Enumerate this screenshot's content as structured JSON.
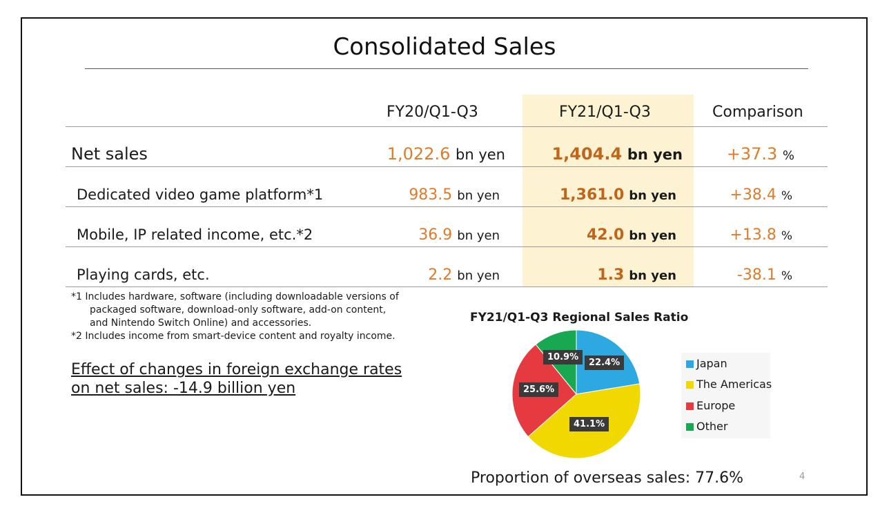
{
  "title": "Consolidated Sales",
  "table": {
    "headers": [
      "FY20/Q1-Q3",
      "FY21/Q1-Q3",
      "Comparison"
    ],
    "rows": [
      {
        "label": "Net sales",
        "fy20": "1,022.6",
        "fy20_unit": "bn yen",
        "fy21": "1,404.4",
        "fy21_unit": "bn yen",
        "cmp": "+37.3",
        "cmp_unit": "%"
      },
      {
        "label": "Dedicated video game platform*1",
        "fy20": "983.5",
        "fy20_unit": "bn yen",
        "fy21": "1,361.0",
        "fy21_unit": "bn yen",
        "cmp": "+38.4",
        "cmp_unit": "%"
      },
      {
        "label": "Mobile, IP related income, etc.*2",
        "fy20": "36.9",
        "fy20_unit": "bn yen",
        "fy21": "42.0",
        "fy21_unit": "bn yen",
        "cmp": "+13.8",
        "cmp_unit": "%"
      },
      {
        "label": "Playing cards, etc.",
        "fy20": "2.2",
        "fy20_unit": "bn yen",
        "fy21": "1.3",
        "fy21_unit": "bn yen",
        "cmp": "-38.1",
        "cmp_unit": "%"
      }
    ]
  },
  "notes": [
    "*1 Includes hardware, software (including downloadable versions of",
    "packaged software, download-only software, add-on content,",
    "and Nintendo Switch Online) and accessories.",
    "*2 Includes income from smart-device content and royalty income."
  ],
  "fx_effect": [
    "Effect of changes in foreign exchange rates",
    "on net sales: -14.9 billion yen"
  ],
  "chart_data": {
    "type": "pie",
    "title": "FY21/Q1-Q3 Regional Sales Ratio",
    "series": [
      {
        "name": "Japan",
        "value": 22.4,
        "label": "22.4%",
        "color": "#2ea8e0"
      },
      {
        "name": "The Americas",
        "value": 41.1,
        "label": "41.1%",
        "color": "#f0d800"
      },
      {
        "name": "Europe",
        "value": 25.6,
        "label": "25.6%",
        "color": "#e63a41"
      },
      {
        "name": "Other",
        "value": 10.9,
        "label": "10.9%",
        "color": "#18a852"
      }
    ],
    "legend_position": "right"
  },
  "overseas": "Proportion of overseas sales: 77.6%",
  "page_number": "4"
}
